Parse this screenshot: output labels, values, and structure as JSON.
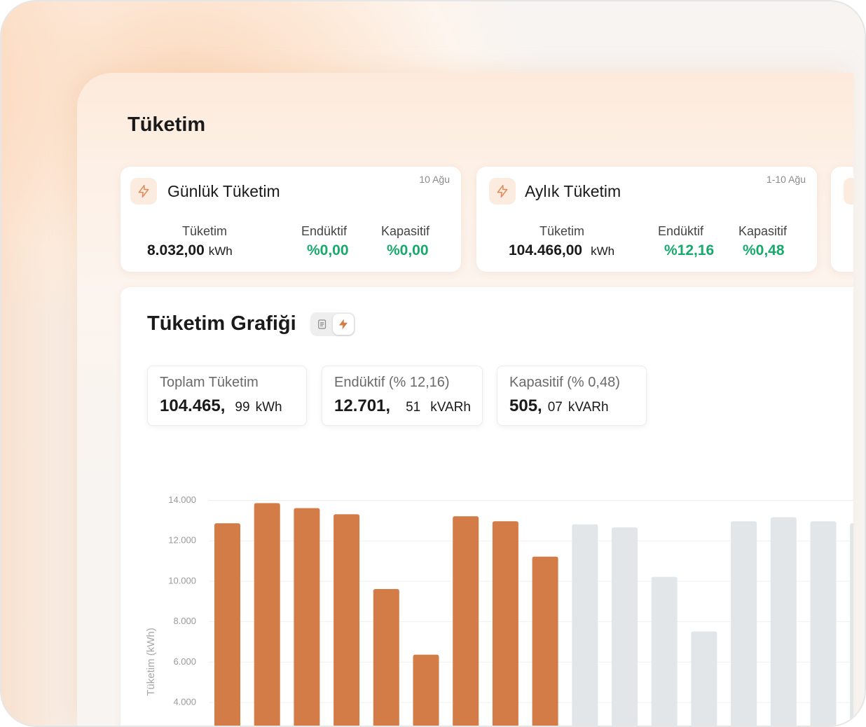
{
  "page": {
    "title": "Tüketim"
  },
  "cards": [
    {
      "title": "Günlük Tüketim",
      "date": "10 Ağu",
      "consumption_label": "Tüketim",
      "consumption_value": "8.032,00",
      "consumption_unit": "kWh",
      "inductive_label": "Endüktif",
      "inductive_value": "%0,00",
      "capacitive_label": "Kapasitif",
      "capacitive_value": "%0,00",
      "icon": "bolt-icon"
    },
    {
      "title": "Aylık Tüketim",
      "date": "1-10 Ağu",
      "consumption_label": "Tüketim",
      "consumption_value": "104.466,00",
      "consumption_unit": "kWh",
      "inductive_label": "Endüktif",
      "inductive_value": "%12,16",
      "capacitive_label": "Kapasitif",
      "capacitive_value": "%0,48",
      "icon": "bolt-icon"
    }
  ],
  "chart_panel": {
    "title": "Tüketim Grafiği",
    "toggle_icons": [
      "document-icon",
      "bolt-icon"
    ],
    "stats": [
      {
        "label": "Toplam Tüketim",
        "big": "104.465,",
        "small": "99",
        "unit": "kWh"
      },
      {
        "label": "Endüktif (% 12,16)",
        "big": "12.701,",
        "small": "51",
        "unit": "kVARh"
      },
      {
        "label": "Kapasitif (% 0,48)",
        "big": "505,",
        "small": "07",
        "unit": "kVARh"
      }
    ]
  },
  "colors": {
    "accent": "#d47c48",
    "bar_active": "#d47c48",
    "bar_future": "#e3e6e8",
    "green": "#18a96c"
  },
  "chart_data": {
    "type": "bar",
    "ylabel": "Tüketim (kWh)",
    "y_ticks": [
      "14.000",
      "12.000",
      "10.000",
      "8.000",
      "6.000",
      "4.000"
    ],
    "y_tick_values": [
      14000,
      12000,
      10000,
      8000,
      6000,
      4000
    ],
    "ylim_visible": [
      4000,
      14000
    ],
    "grid": true,
    "series": [
      {
        "values": [
          12850,
          13850,
          13600,
          13300,
          9600,
          6350,
          13200,
          12950,
          11200
        ]
      },
      {
        "values": [
          12800,
          12650,
          10200,
          7500,
          12950,
          13150,
          12950,
          12850
        ]
      }
    ]
  }
}
